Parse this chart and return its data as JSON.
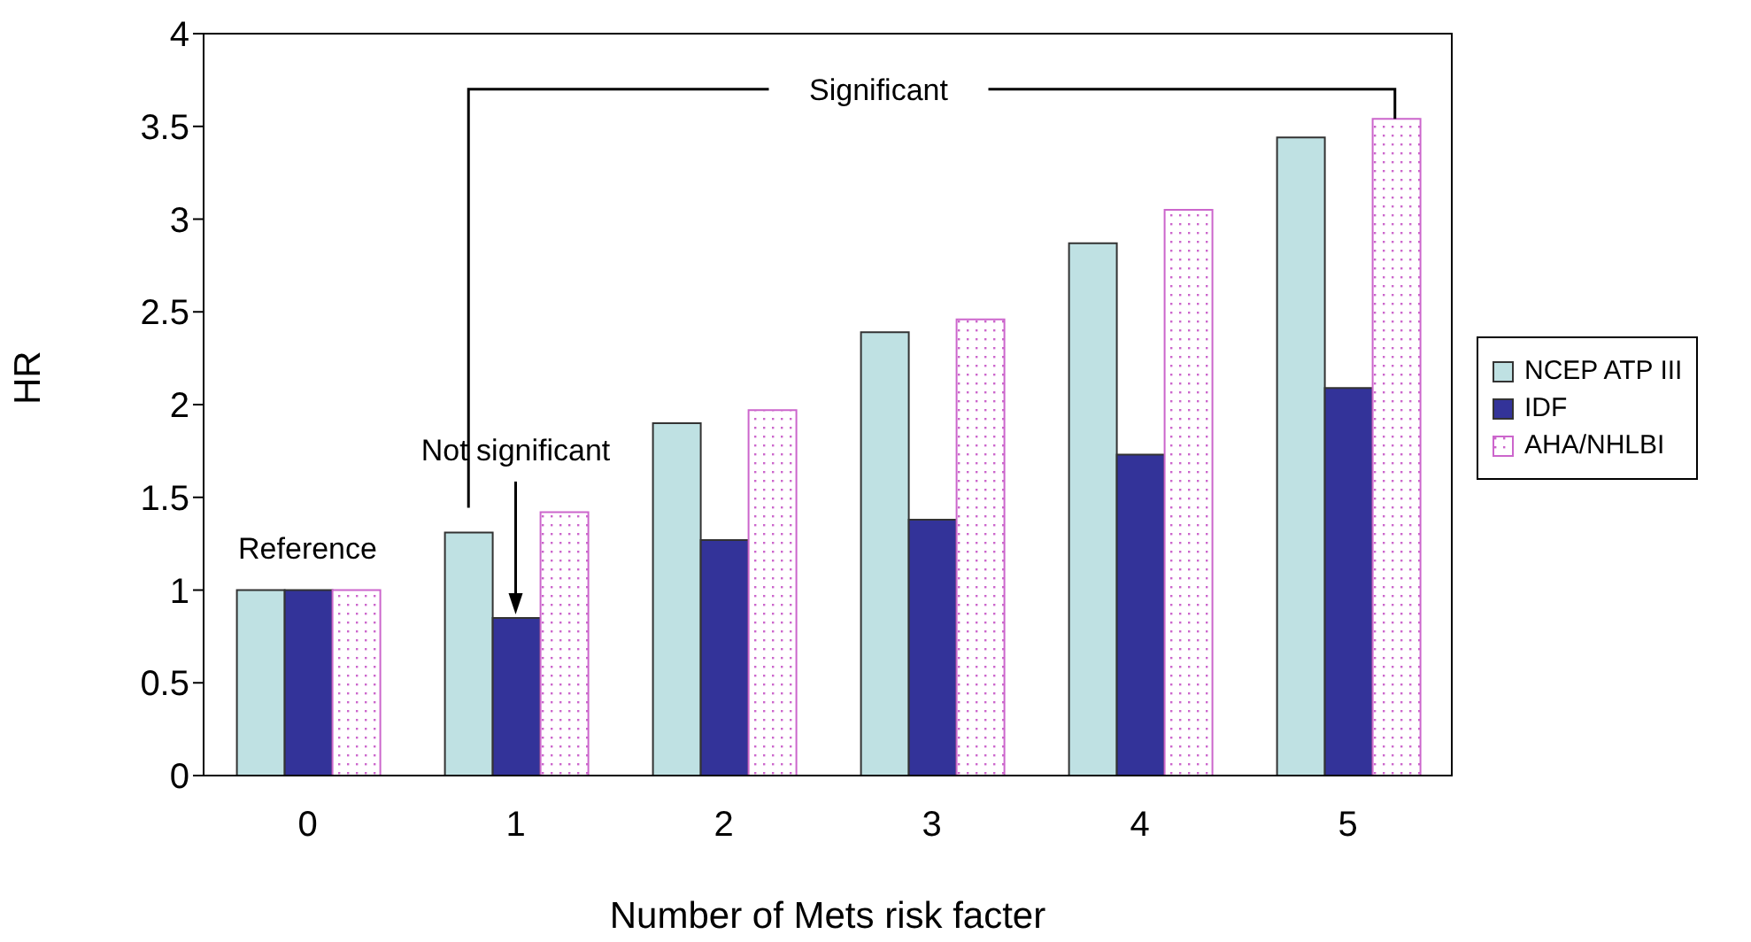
{
  "chart_data": {
    "type": "bar",
    "xlabel": "Number of Mets risk facter",
    "ylabel": "HR",
    "categories": [
      "0",
      "1",
      "2",
      "3",
      "4",
      "5"
    ],
    "series": [
      {
        "name": "NCEP ATP III",
        "color": "#bfe1e3",
        "values": [
          1,
          1.31,
          1.9,
          2.39,
          2.87,
          3.44
        ]
      },
      {
        "name": "IDF",
        "color": "#333399",
        "values": [
          1,
          0.85,
          1.27,
          1.38,
          1.73,
          2.09
        ]
      },
      {
        "name": "AHA/NHLBI",
        "color": "#cc66cc",
        "values": [
          1,
          1.42,
          1.97,
          2.46,
          3.05,
          3.54
        ]
      }
    ],
    "ylim": [
      0,
      4
    ],
    "yticks": [
      0,
      0.5,
      1,
      1.5,
      2,
      2.5,
      3,
      3.5,
      4
    ],
    "legend": "right",
    "annotations": [
      {
        "text": "Reference",
        "x": "0",
        "y": 1
      },
      "Not significant",
      "Significant"
    ]
  }
}
